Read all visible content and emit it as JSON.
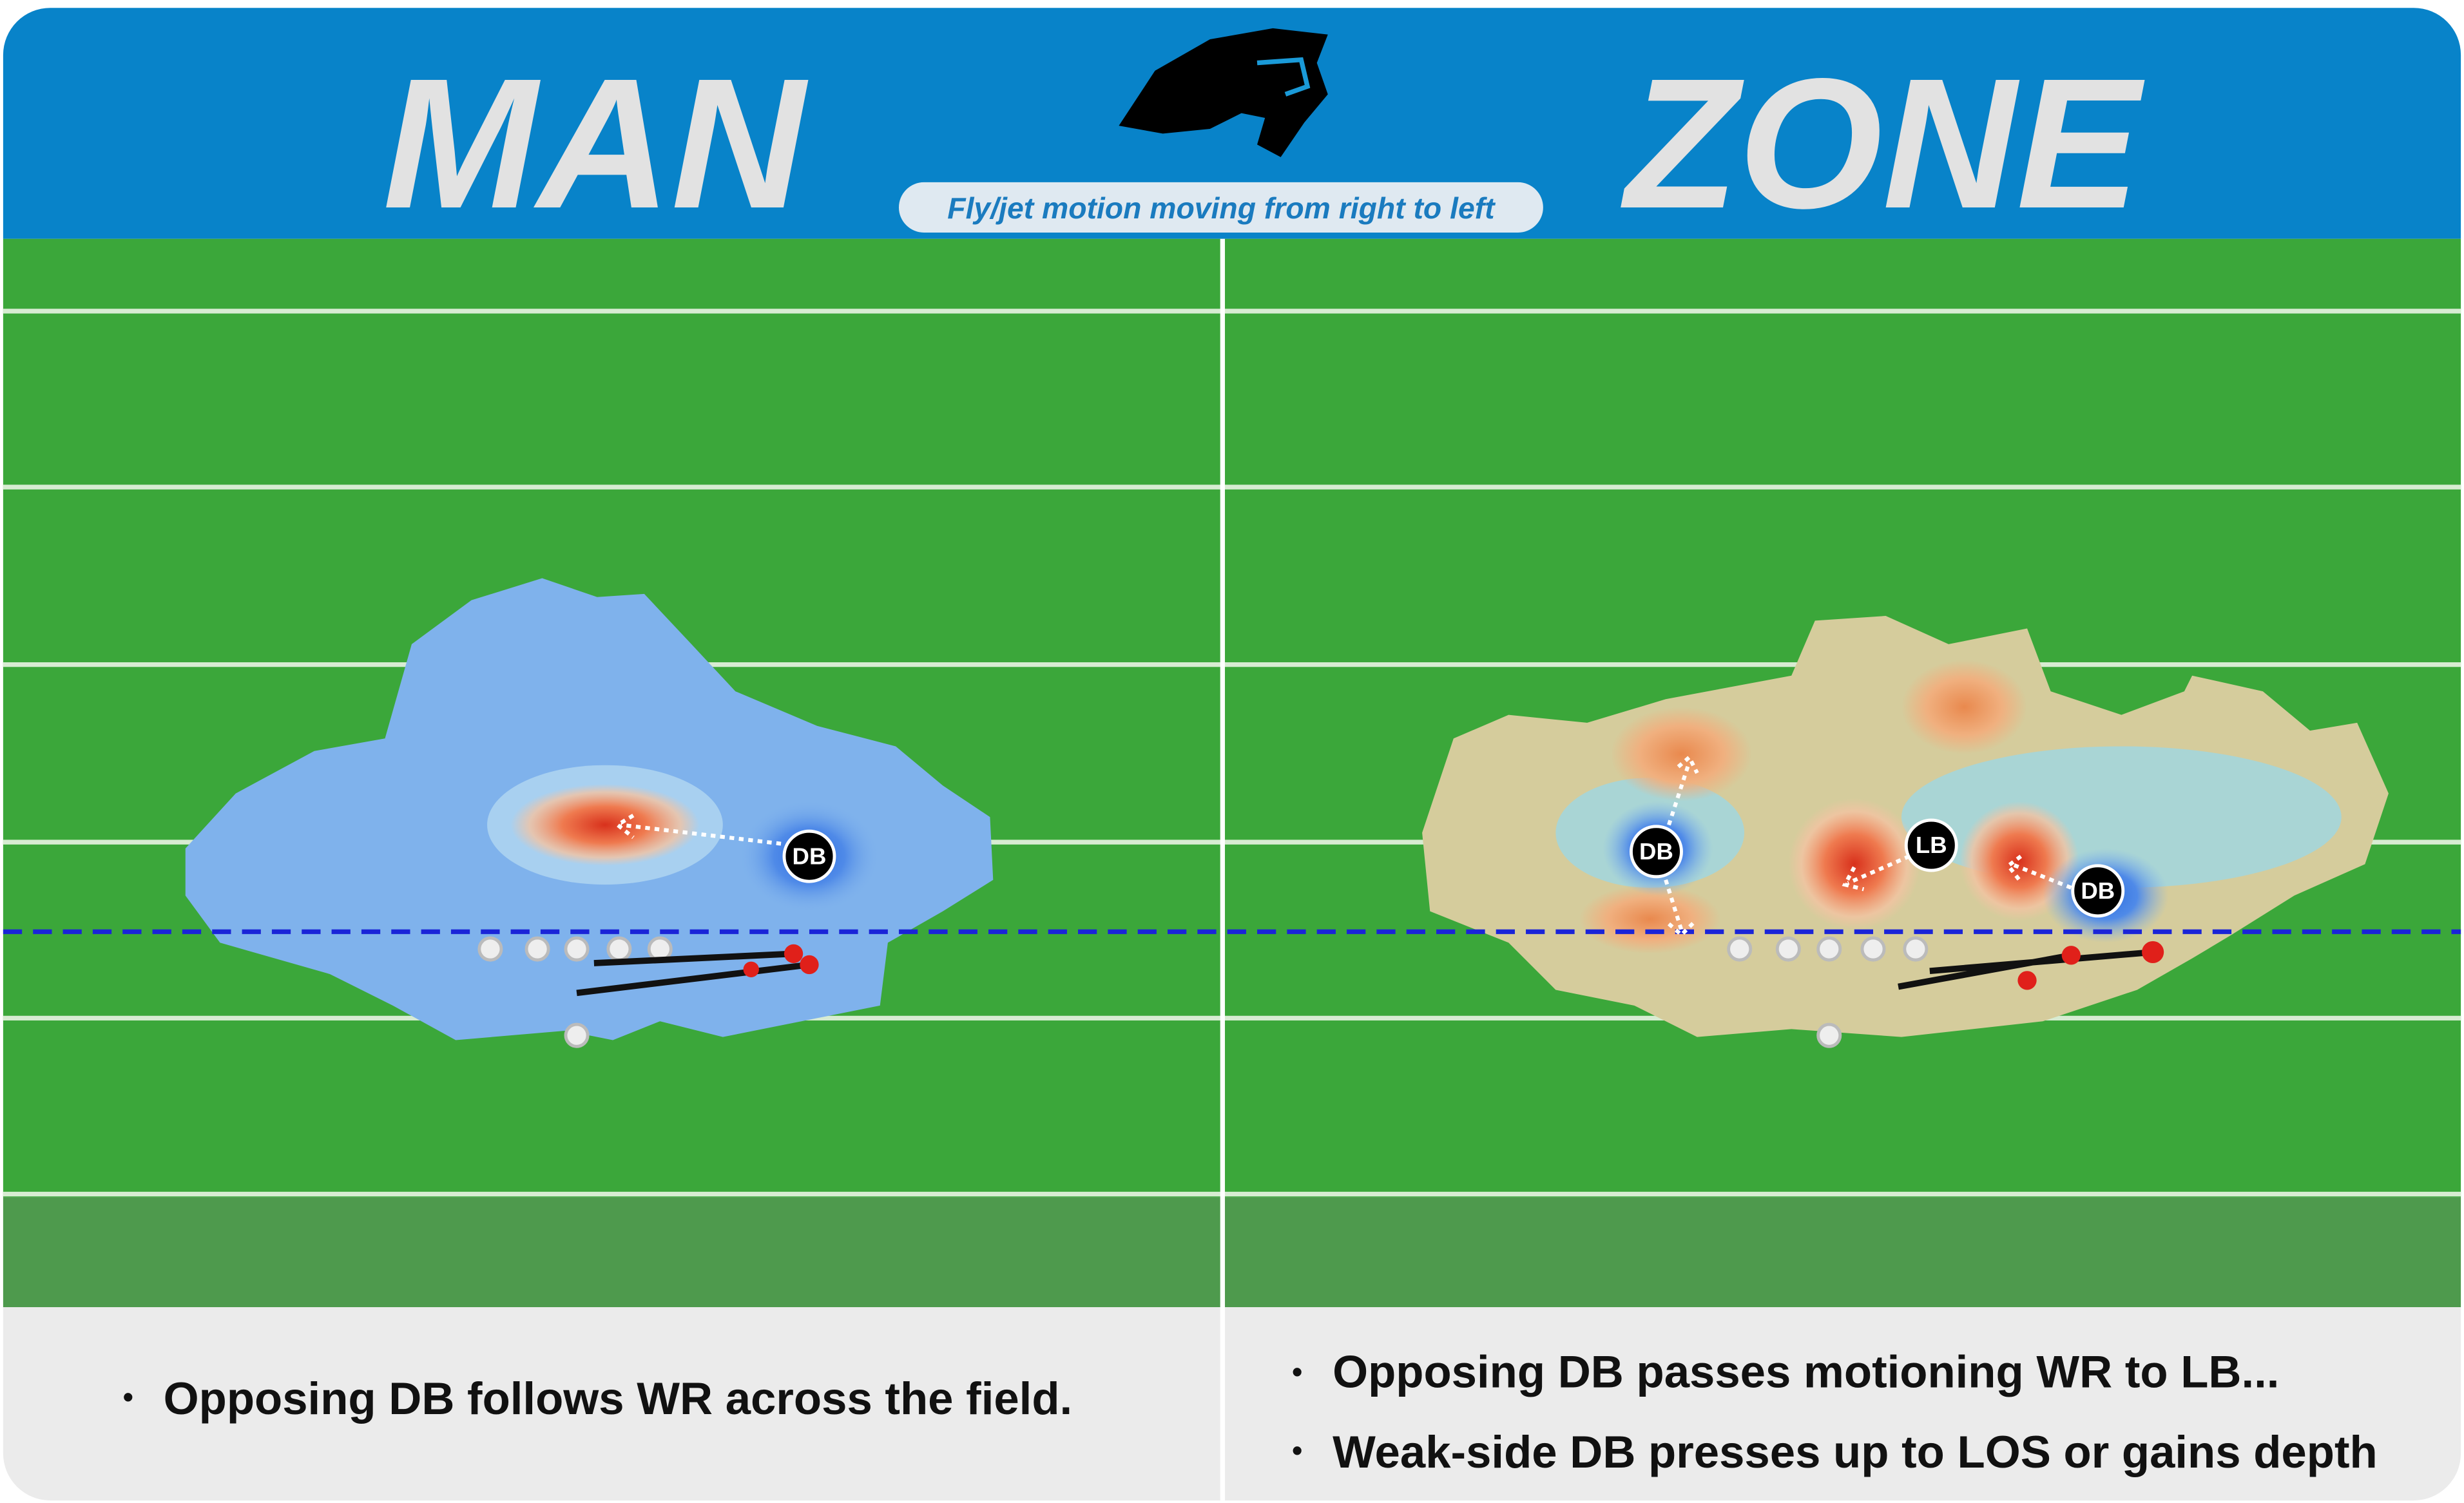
{
  "header": {
    "left_title": "MAN",
    "right_title": "ZONE",
    "subtitle": "Fly/jet motion moving from right to left"
  },
  "man": {
    "players": [
      "DB"
    ],
    "notes": [
      "Opposing DB follows WR across the field."
    ]
  },
  "zone": {
    "players": [
      "DB",
      "LB",
      "DB"
    ],
    "notes": [
      "Opposing DB passes motioning WR to LB...",
      "Weak-side DB presses up to LOS or gains depth"
    ]
  }
}
